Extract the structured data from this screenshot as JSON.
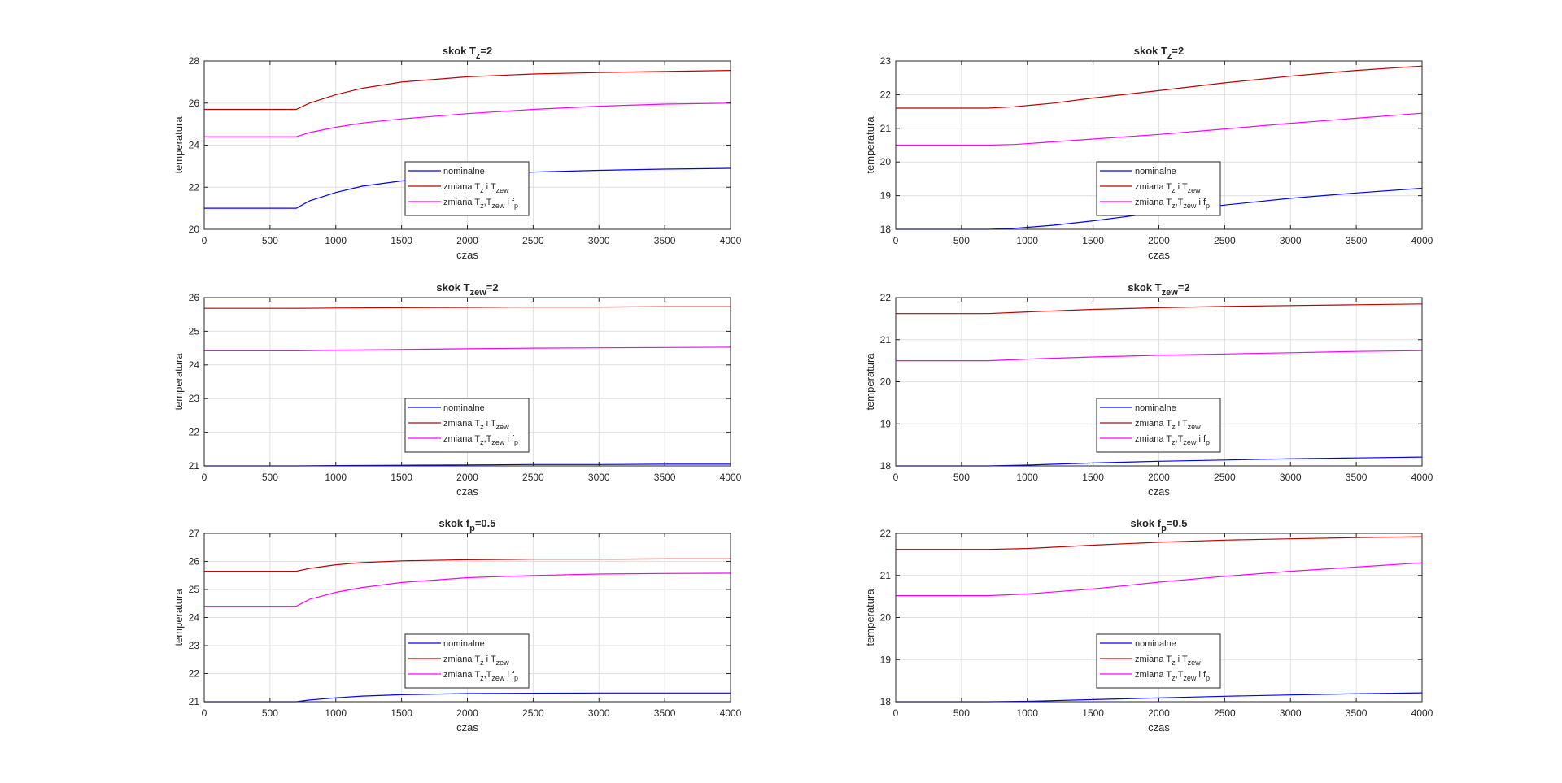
{
  "colors": {
    "nominal": "#0000ff",
    "change_tz_tzew": "#c00000",
    "change_all": "#ff00ff",
    "grid": "#e0e0e0",
    "axis": "#262626"
  },
  "chart_data": [
    {
      "type": "line",
      "title_main": "skok T",
      "title_sub": "z",
      "title_tail": "=2",
      "xlabel": "czas",
      "ylabel": "temperatura",
      "xlim": [
        0,
        4000
      ],
      "ylim": [
        20,
        28
      ],
      "xticks": [
        0,
        500,
        1000,
        1500,
        2000,
        2500,
        3000,
        3500,
        4000
      ],
      "yticks": [
        20,
        22,
        24,
        26,
        28
      ],
      "grid": true,
      "legend_position": "center-bottom",
      "series": [
        {
          "name": "nominalne",
          "color_key": "nominal",
          "x": [
            0,
            700,
            800,
            1000,
            1200,
            1500,
            2000,
            2500,
            3000,
            3500,
            4000
          ],
          "y": [
            21.0,
            21.0,
            21.35,
            21.75,
            22.05,
            22.3,
            22.58,
            22.72,
            22.8,
            22.86,
            22.9
          ]
        },
        {
          "name": "zmiana T_z i T_zew",
          "color_key": "change_tz_tzew",
          "x": [
            0,
            700,
            800,
            1000,
            1200,
            1500,
            2000,
            2500,
            3000,
            3500,
            4000
          ],
          "y": [
            25.7,
            25.7,
            26.0,
            26.4,
            26.7,
            27.0,
            27.25,
            27.38,
            27.45,
            27.5,
            27.55
          ]
        },
        {
          "name": "zmiana T_z,T_zew i f_p",
          "color_key": "change_all",
          "x": [
            0,
            700,
            800,
            1000,
            1200,
            1500,
            2000,
            2500,
            3000,
            3500,
            4000
          ],
          "y": [
            24.4,
            24.4,
            24.6,
            24.85,
            25.05,
            25.25,
            25.5,
            25.7,
            25.85,
            25.95,
            26.0
          ]
        }
      ]
    },
    {
      "type": "line",
      "title_main": "skok T",
      "title_sub": "z",
      "title_tail": "=2",
      "xlabel": "czas",
      "ylabel": "temperatura",
      "xlim": [
        0,
        4000
      ],
      "ylim": [
        18,
        23
      ],
      "xticks": [
        0,
        500,
        1000,
        1500,
        2000,
        2500,
        3000,
        3500,
        4000
      ],
      "yticks": [
        18,
        19,
        20,
        21,
        22,
        23
      ],
      "grid": true,
      "legend_position": "center-bottom",
      "series": [
        {
          "name": "nominalne",
          "color_key": "nominal",
          "x": [
            0,
            700,
            900,
            1200,
            1500,
            2000,
            2500,
            3000,
            3500,
            4000
          ],
          "y": [
            18.0,
            18.0,
            18.03,
            18.12,
            18.25,
            18.5,
            18.72,
            18.92,
            19.08,
            19.22
          ]
        },
        {
          "name": "zmiana T_z i T_zew",
          "color_key": "change_tz_tzew",
          "x": [
            0,
            700,
            900,
            1200,
            1500,
            2000,
            2500,
            3000,
            3500,
            4000
          ],
          "y": [
            21.6,
            21.6,
            21.64,
            21.75,
            21.9,
            22.12,
            22.35,
            22.55,
            22.72,
            22.85
          ]
        },
        {
          "name": "zmiana T_z,T_zew i f_p",
          "color_key": "change_all",
          "x": [
            0,
            700,
            900,
            1200,
            1500,
            2000,
            2500,
            3000,
            3500,
            4000
          ],
          "y": [
            20.5,
            20.5,
            20.52,
            20.6,
            20.68,
            20.82,
            20.98,
            21.15,
            21.3,
            21.45
          ]
        }
      ]
    },
    {
      "type": "line",
      "title_main": "skok T",
      "title_sub": "zew",
      "title_tail": "=2",
      "xlabel": "czas",
      "ylabel": "temperatura",
      "xlim": [
        0,
        4000
      ],
      "ylim": [
        21,
        26
      ],
      "xticks": [
        0,
        500,
        1000,
        1500,
        2000,
        2500,
        3000,
        3500,
        4000
      ],
      "yticks": [
        21,
        22,
        23,
        24,
        25,
        26
      ],
      "grid": true,
      "legend_position": "center-bottom",
      "series": [
        {
          "name": "nominalne",
          "color_key": "nominal",
          "x": [
            0,
            700,
            1000,
            1500,
            2000,
            2500,
            3000,
            3500,
            4000
          ],
          "y": [
            21.0,
            21.0,
            21.01,
            21.02,
            21.03,
            21.04,
            21.04,
            21.05,
            21.05
          ]
        },
        {
          "name": "zmiana T_z i T_zew",
          "color_key": "change_tz_tzew",
          "x": [
            0,
            700,
            1000,
            1500,
            2000,
            2500,
            3000,
            3500,
            4000
          ],
          "y": [
            25.68,
            25.68,
            25.69,
            25.7,
            25.71,
            25.72,
            25.72,
            25.73,
            25.73
          ]
        },
        {
          "name": "zmiana T_z,T_zew i f_p",
          "color_key": "change_all",
          "x": [
            0,
            700,
            1000,
            1500,
            2000,
            2500,
            3000,
            3500,
            4000
          ],
          "y": [
            24.42,
            24.42,
            24.44,
            24.46,
            24.48,
            24.5,
            24.51,
            24.52,
            24.53
          ]
        }
      ]
    },
    {
      "type": "line",
      "title_main": "skok T",
      "title_sub": "zew",
      "title_tail": "=2",
      "xlabel": "czas",
      "ylabel": "temperatura",
      "xlim": [
        0,
        4000
      ],
      "ylim": [
        18,
        22
      ],
      "xticks": [
        0,
        500,
        1000,
        1500,
        2000,
        2500,
        3000,
        3500,
        4000
      ],
      "yticks": [
        18,
        19,
        20,
        21,
        22
      ],
      "grid": true,
      "legend_position": "center-bottom",
      "series": [
        {
          "name": "nominalne",
          "color_key": "nominal",
          "x": [
            0,
            700,
            1000,
            1500,
            2000,
            2500,
            3000,
            3500,
            4000
          ],
          "y": [
            18.0,
            18.0,
            18.02,
            18.07,
            18.11,
            18.14,
            18.17,
            18.19,
            18.21
          ]
        },
        {
          "name": "zmiana T_z i T_zew",
          "color_key": "change_tz_tzew",
          "x": [
            0,
            700,
            1000,
            1500,
            2000,
            2500,
            3000,
            3500,
            4000
          ],
          "y": [
            21.62,
            21.62,
            21.66,
            21.72,
            21.76,
            21.79,
            21.81,
            21.83,
            21.85
          ]
        },
        {
          "name": "zmiana T_z,T_zew i f_p",
          "color_key": "change_all",
          "x": [
            0,
            700,
            1000,
            1500,
            2000,
            2500,
            3000,
            3500,
            4000
          ],
          "y": [
            20.5,
            20.5,
            20.54,
            20.59,
            20.63,
            20.66,
            20.69,
            20.72,
            20.74
          ]
        }
      ]
    },
    {
      "type": "line",
      "title_main": "skok f",
      "title_sub": "p",
      "title_tail": "=0.5",
      "xlabel": "czas",
      "ylabel": "temperatura",
      "xlim": [
        0,
        4000
      ],
      "ylim": [
        21,
        27
      ],
      "xticks": [
        0,
        500,
        1000,
        1500,
        2000,
        2500,
        3000,
        3500,
        4000
      ],
      "yticks": [
        21,
        22,
        23,
        24,
        25,
        26,
        27
      ],
      "grid": true,
      "legend_position": "center-bottom",
      "series": [
        {
          "name": "nominalne",
          "color_key": "nominal",
          "x": [
            0,
            700,
            800,
            1000,
            1200,
            1500,
            2000,
            2500,
            3000,
            3500,
            4000
          ],
          "y": [
            21.0,
            21.0,
            21.06,
            21.14,
            21.2,
            21.25,
            21.29,
            21.3,
            21.31,
            21.31,
            21.31
          ]
        },
        {
          "name": "zmiana T_z i T_zew",
          "color_key": "change_tz_tzew",
          "x": [
            0,
            700,
            800,
            1000,
            1200,
            1500,
            2000,
            2500,
            3000,
            3500,
            4000
          ],
          "y": [
            25.65,
            25.65,
            25.75,
            25.88,
            25.96,
            26.02,
            26.06,
            26.08,
            26.08,
            26.09,
            26.09
          ]
        },
        {
          "name": "zmiana T_z,T_zew i f_p",
          "color_key": "change_all",
          "x": [
            0,
            700,
            800,
            1000,
            1200,
            1500,
            2000,
            2500,
            3000,
            3500,
            4000
          ],
          "y": [
            24.4,
            24.4,
            24.65,
            24.9,
            25.07,
            25.25,
            25.42,
            25.5,
            25.55,
            25.57,
            25.58
          ]
        }
      ]
    },
    {
      "type": "line",
      "title_main": "skok f",
      "title_sub": "p",
      "title_tail": "=0.5",
      "xlabel": "czas",
      "ylabel": "temperatura",
      "xlim": [
        0,
        4000
      ],
      "ylim": [
        18,
        22
      ],
      "xticks": [
        0,
        500,
        1000,
        1500,
        2000,
        2500,
        3000,
        3500,
        4000
      ],
      "yticks": [
        18,
        19,
        20,
        21,
        22
      ],
      "grid": true,
      "legend_position": "center-bottom",
      "series": [
        {
          "name": "nominalne",
          "color_key": "nominal",
          "x": [
            0,
            700,
            1000,
            1500,
            2000,
            2500,
            3000,
            3500,
            4000
          ],
          "y": [
            18.0,
            18.0,
            18.01,
            18.05,
            18.09,
            18.13,
            18.16,
            18.19,
            18.21
          ]
        },
        {
          "name": "zmiana T_z i T_zew",
          "color_key": "change_tz_tzew",
          "x": [
            0,
            700,
            1000,
            1500,
            2000,
            2500,
            3000,
            3500,
            4000
          ],
          "y": [
            21.62,
            21.62,
            21.64,
            21.72,
            21.79,
            21.84,
            21.87,
            21.9,
            21.92
          ]
        },
        {
          "name": "zmiana T_z,T_zew i f_p",
          "color_key": "change_all",
          "x": [
            0,
            700,
            1000,
            1500,
            2000,
            2500,
            3000,
            3500,
            4000
          ],
          "y": [
            20.52,
            20.52,
            20.56,
            20.68,
            20.84,
            20.98,
            21.1,
            21.2,
            21.3
          ]
        }
      ]
    }
  ]
}
